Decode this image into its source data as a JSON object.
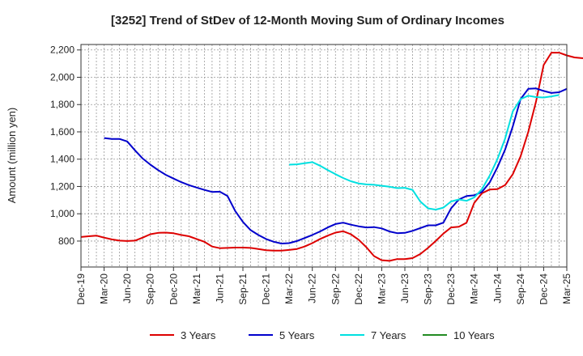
{
  "chart_data": {
    "type": "line",
    "title": "[3252]  Trend of StDev of 12-Month Moving Sum of Ordinary Incomes",
    "xlabel": "",
    "ylabel": "Amount (million yen)",
    "ylim": [
      610,
      2240
    ],
    "yticks": [
      800,
      1000,
      1200,
      1400,
      1600,
      1800,
      2000,
      2200
    ],
    "ytick_labels": [
      "800",
      "1,000",
      "1,200",
      "1,400",
      "1,600",
      "1,800",
      "2,000",
      "2,200"
    ],
    "x_start": "Dec-19",
    "x_end": "Mar-25",
    "xticks": [
      "Dec-19",
      "Mar-20",
      "Jun-20",
      "Sep-20",
      "Dec-20",
      "Mar-21",
      "Jun-21",
      "Sep-21",
      "Dec-21",
      "Mar-22",
      "Jun-22",
      "Sep-22",
      "Dec-22",
      "Mar-23",
      "Jun-23",
      "Sep-23",
      "Dec-23",
      "Mar-24",
      "Jun-24",
      "Sep-24",
      "Dec-24",
      "Mar-25"
    ],
    "series": [
      {
        "name": "3 Years",
        "color": "#dd0000",
        "start_month": 0,
        "values": [
          830,
          835,
          840,
          825,
          812,
          803,
          800,
          803,
          825,
          850,
          860,
          862,
          857,
          845,
          835,
          815,
          795,
          760,
          748,
          750,
          752,
          752,
          750,
          742,
          733,
          730,
          730,
          735,
          742,
          760,
          785,
          815,
          840,
          862,
          872,
          850,
          810,
          755,
          690,
          660,
          655,
          668,
          668,
          675,
          705,
          750,
          800,
          855,
          900,
          905,
          935,
          1080,
          1150,
          1178,
          1180,
          1210,
          1290,
          1420,
          1600,
          1820,
          2090,
          2180,
          2180,
          2160,
          2145,
          2140,
          2143
        ]
      },
      {
        "name": "5 Years",
        "color": "#0000cc",
        "start_month": 3,
        "values": [
          1555,
          1548,
          1548,
          1530,
          1465,
          1405,
          1360,
          1320,
          1285,
          1258,
          1232,
          1210,
          1192,
          1175,
          1160,
          1162,
          1130,
          1020,
          940,
          880,
          845,
          815,
          795,
          782,
          785,
          800,
          822,
          845,
          870,
          900,
          925,
          935,
          920,
          908,
          900,
          902,
          893,
          870,
          858,
          860,
          875,
          895,
          915,
          915,
          935,
          1040,
          1105,
          1130,
          1135,
          1160,
          1230,
          1340,
          1470,
          1640,
          1840,
          1915,
          1918,
          1900,
          1885,
          1890,
          1915
        ]
      },
      {
        "name": "7 Years",
        "color": "#00e0e0",
        "start_month": 27,
        "values": [
          1360,
          1362,
          1370,
          1378,
          1352,
          1320,
          1290,
          1262,
          1238,
          1222,
          1215,
          1212,
          1205,
          1198,
          1188,
          1190,
          1175,
          1090,
          1040,
          1030,
          1045,
          1090,
          1105,
          1095,
          1120,
          1180,
          1280,
          1400,
          1550,
          1750,
          1840,
          1865,
          1855,
          1852,
          1860,
          1870
        ]
      },
      {
        "name": "10 Years",
        "color": "#228b22",
        "start_month": 0,
        "values": []
      }
    ],
    "grid": true,
    "legend_position": "bottom"
  }
}
